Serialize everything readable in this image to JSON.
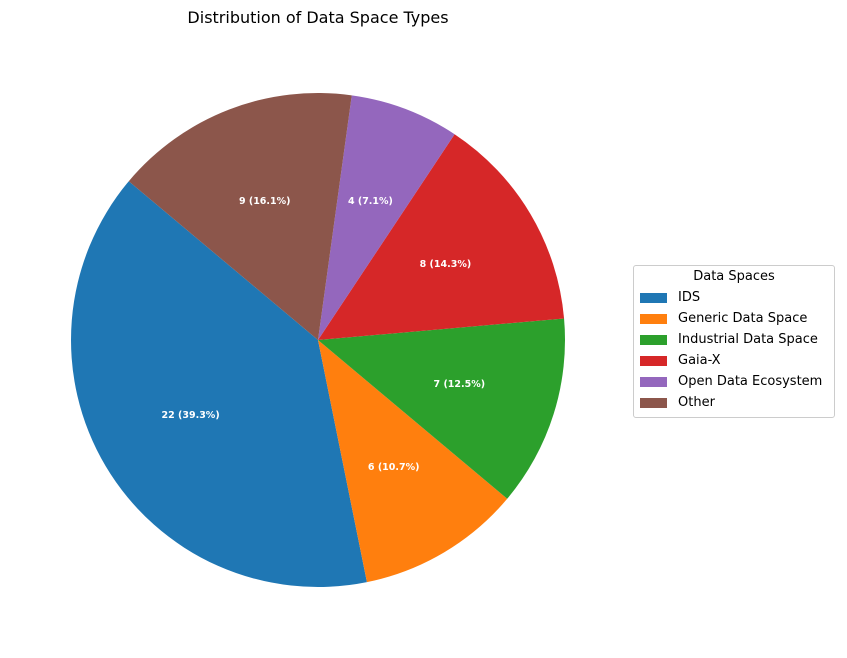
{
  "chart_data": {
    "type": "pie",
    "title": "Distribution of Data Space Types",
    "legend_title": "Data Spaces",
    "legend_position": "right",
    "slices": [
      {
        "label": "IDS",
        "value": 22,
        "data_label": "22 (39.3%)",
        "color": "#1f77b4"
      },
      {
        "label": "Generic Data Space",
        "value": 6,
        "data_label": "6 (10.7%)",
        "color": "#ff7f0e"
      },
      {
        "label": "Industrial Data Space",
        "value": 7,
        "data_label": "7 (12.5%)",
        "color": "#2ca02c"
      },
      {
        "label": "Gaia-X",
        "value": 8,
        "data_label": "8 (14.3%)",
        "color": "#d62728"
      },
      {
        "label": "Open Data Ecosystem",
        "value": 4,
        "data_label": "4 (7.1%)",
        "color": "#9467bd"
      },
      {
        "label": "Other",
        "value": 9,
        "data_label": "9 (16.1%)",
        "color": "#8c564b"
      }
    ]
  }
}
